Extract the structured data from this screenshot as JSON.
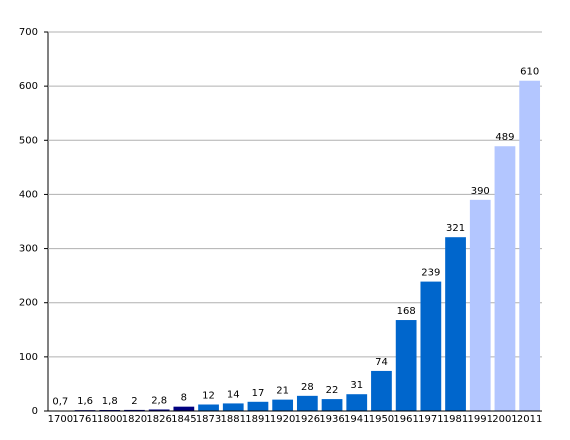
{
  "chart_data": {
    "type": "bar",
    "categories": [
      "1700",
      "1761",
      "1800",
      "1820",
      "1826",
      "1845",
      "1873",
      "1881",
      "1891",
      "1920",
      "1926",
      "1936",
      "1941",
      "1950",
      "1961",
      "1971",
      "1981",
      "1991",
      "2001",
      "2011"
    ],
    "values": [
      0.7,
      1.6,
      1.8,
      2,
      2.8,
      8,
      12,
      14,
      17,
      21,
      28,
      22,
      31,
      74,
      168,
      239,
      321,
      390,
      489,
      610
    ],
    "value_labels": [
      "0,7",
      "1,6",
      "1,8",
      "2",
      "2,8",
      "8",
      "12",
      "14",
      "17",
      "21",
      "28",
      "22",
      "31",
      "74",
      "168",
      "239",
      "321",
      "390",
      "489",
      "610"
    ],
    "colors": [
      "#000080",
      "#000080",
      "#000080",
      "#000080",
      "#000080",
      "#000080",
      "#0066cc",
      "#0066cc",
      "#0066cc",
      "#0066cc",
      "#0066cc",
      "#0066cc",
      "#0066cc",
      "#0066cc",
      "#0066cc",
      "#0066cc",
      "#0066cc",
      "#b3c6ff",
      "#b3c6ff",
      "#b3c6ff"
    ],
    "ylim": [
      0,
      700
    ],
    "yticks": [
      0,
      100,
      200,
      300,
      400,
      500,
      600,
      700
    ],
    "grid": true
  }
}
